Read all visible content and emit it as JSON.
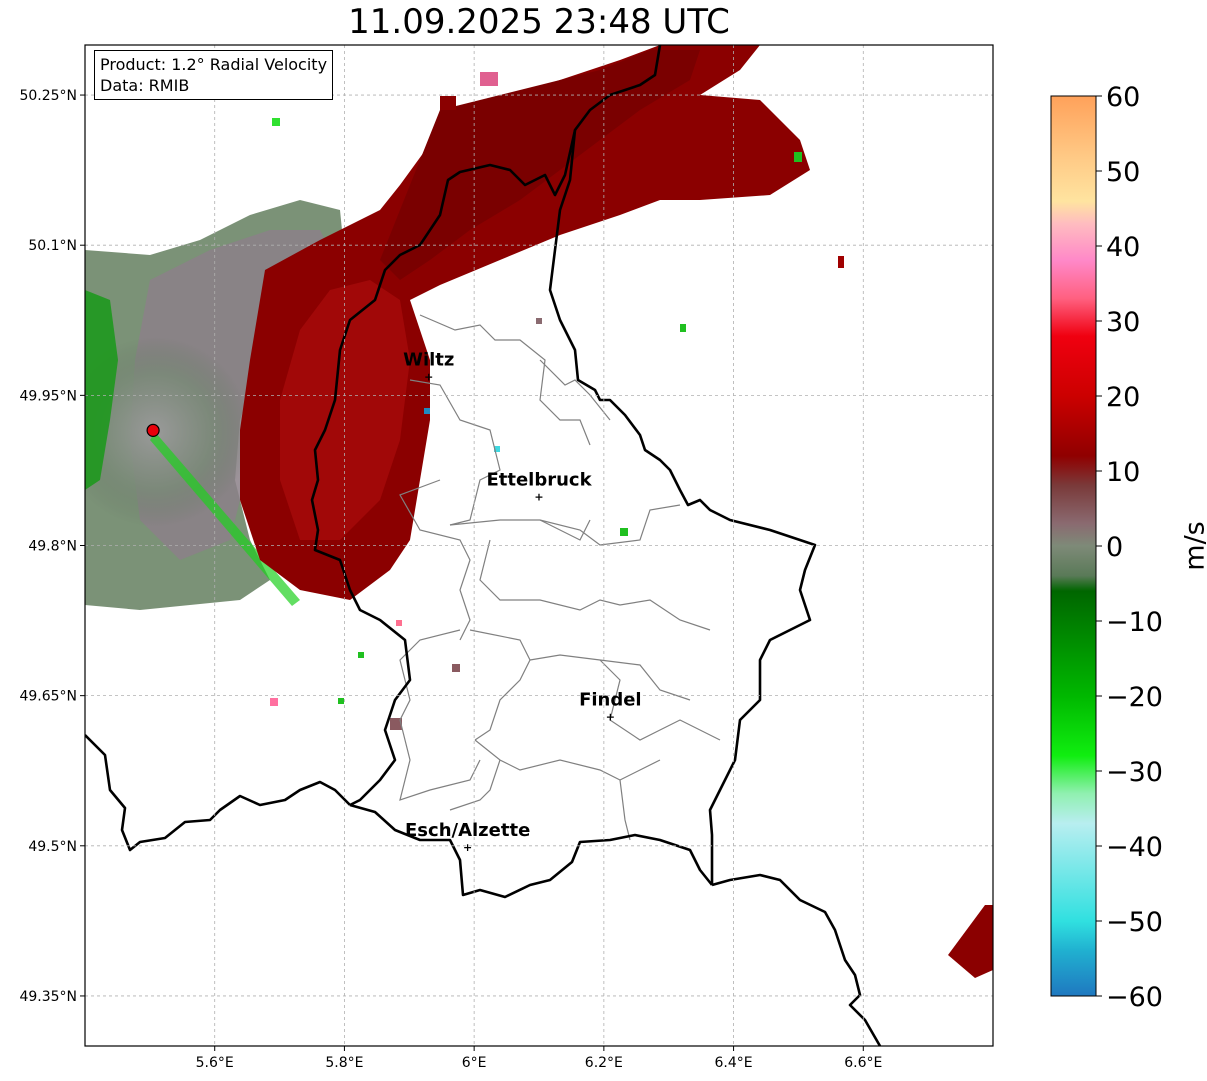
{
  "title": "11.09.2025 23:48 UTC",
  "info": {
    "product": "Product: 1.2° Radial Velocity",
    "data": "Data: RMIB"
  },
  "axes": {
    "lon_ticks": [
      {
        "value": 5.6,
        "label": "5.6°E"
      },
      {
        "value": 5.8,
        "label": "5.8°E"
      },
      {
        "value": 6.0,
        "label": "6°E"
      },
      {
        "value": 6.2,
        "label": "6.2°E"
      },
      {
        "value": 6.4,
        "label": "6.4°E"
      },
      {
        "value": 6.6,
        "label": "6.6°E"
      }
    ],
    "lat_ticks": [
      {
        "value": 50.25,
        "label": "50.25°N"
      },
      {
        "value": 50.1,
        "label": "50.1°N"
      },
      {
        "value": 49.95,
        "label": "49.95°N"
      },
      {
        "value": 49.8,
        "label": "49.8°N"
      },
      {
        "value": 49.65,
        "label": "49.65°N"
      },
      {
        "value": 49.5,
        "label": "49.5°N"
      },
      {
        "value": 49.35,
        "label": "49.35°N"
      }
    ],
    "lon_range": [
      5.4,
      6.8
    ],
    "lat_range": [
      49.3,
      50.3
    ],
    "grid": true
  },
  "cities": [
    {
      "name": "Wiltz",
      "lon": 5.93,
      "lat": 49.97
    },
    {
      "name": "Ettelbruck",
      "lon": 6.1,
      "lat": 49.85
    },
    {
      "name": "Findel",
      "lon": 6.21,
      "lat": 49.63
    },
    {
      "name": "Esch/Alzette",
      "lon": 5.99,
      "lat": 49.5
    }
  ],
  "radar_site": {
    "lon": 5.505,
    "lat": 49.915,
    "color": "#e8000b"
  },
  "colorbar": {
    "label": "m/s",
    "min": -60,
    "max": 60,
    "ticks": [
      {
        "value": 60,
        "label": "60"
      },
      {
        "value": 50,
        "label": "50"
      },
      {
        "value": 40,
        "label": "40"
      },
      {
        "value": 30,
        "label": "30"
      },
      {
        "value": 20,
        "label": "20"
      },
      {
        "value": 10,
        "label": "10"
      },
      {
        "value": 0,
        "label": "0"
      },
      {
        "value": -10,
        "label": "−10"
      },
      {
        "value": -20,
        "label": "−20"
      },
      {
        "value": -30,
        "label": "−30"
      },
      {
        "value": -40,
        "label": "−40"
      },
      {
        "value": -50,
        "label": "−50"
      },
      {
        "value": -60,
        "label": "−60"
      }
    ],
    "stops": [
      {
        "value": 60,
        "color": "#ffa15a"
      },
      {
        "value": 52,
        "color": "#ffc985"
      },
      {
        "value": 46,
        "color": "#ffe4a0"
      },
      {
        "value": 43,
        "color": "#ffbcc0"
      },
      {
        "value": 38,
        "color": "#ff88c8"
      },
      {
        "value": 33,
        "color": "#ff6080"
      },
      {
        "value": 28,
        "color": "#f00010"
      },
      {
        "value": 20,
        "color": "#cc0000"
      },
      {
        "value": 12,
        "color": "#900000"
      },
      {
        "value": 8,
        "color": "#7a3a3a"
      },
      {
        "value": 3,
        "color": "#8a6a70"
      },
      {
        "value": 0,
        "color": "#7e8a78"
      },
      {
        "value": -4,
        "color": "#5a7a58"
      },
      {
        "value": -6,
        "color": "#006600"
      },
      {
        "value": -20,
        "color": "#00b800"
      },
      {
        "value": -28,
        "color": "#10ee10"
      },
      {
        "value": -33,
        "color": "#90f0b0"
      },
      {
        "value": -37,
        "color": "#b8eef0"
      },
      {
        "value": -50,
        "color": "#30e0e0"
      },
      {
        "value": -54,
        "color": "#20b0d0"
      },
      {
        "value": -60,
        "color": "#1f78c0"
      }
    ]
  }
}
